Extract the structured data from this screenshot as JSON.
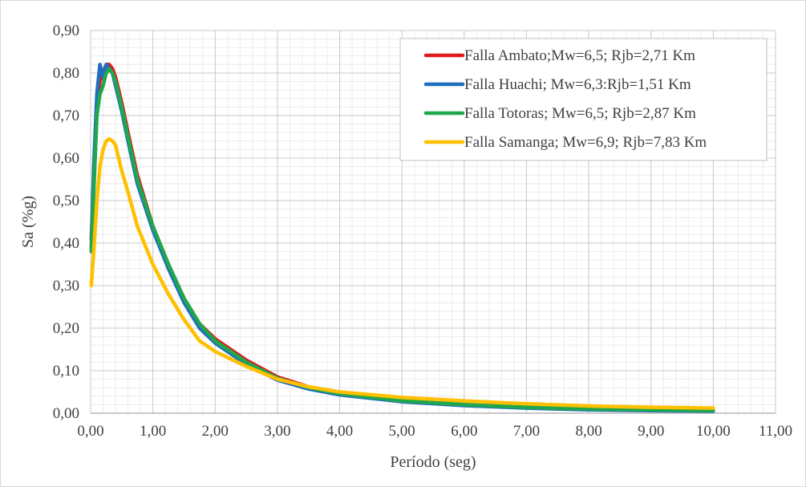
{
  "chart_data": {
    "type": "line",
    "title": "",
    "xlabel": "Período (seg)",
    "ylabel": "Sa (%g)",
    "xlim": [
      0,
      11
    ],
    "ylim": [
      0,
      0.9
    ],
    "x_major_step": 1,
    "x_minor_step": 0.2,
    "y_major_step": 0.1,
    "y_minor_step": 0.02,
    "x_tick_labels": [
      "0,00",
      "1,00",
      "2,00",
      "3,00",
      "4,00",
      "5,00",
      "6,00",
      "7,00",
      "8,00",
      "9,00",
      "10,00",
      "11,00"
    ],
    "y_tick_labels": [
      "0,00",
      "0,10",
      "0,20",
      "0,30",
      "0,40",
      "0,50",
      "0,60",
      "0,70",
      "0,80",
      "0,90"
    ],
    "grid": true,
    "legend_position": "top-right",
    "series": [
      {
        "name": "Falla Ambato;Mw=6,5; Rjb=2,71 Km",
        "color": "#e31a1c",
        "points": [
          [
            0.01,
            0.41
          ],
          [
            0.05,
            0.55
          ],
          [
            0.1,
            0.73
          ],
          [
            0.15,
            0.78
          ],
          [
            0.2,
            0.8
          ],
          [
            0.25,
            0.82
          ],
          [
            0.3,
            0.82
          ],
          [
            0.35,
            0.81
          ],
          [
            0.4,
            0.79
          ],
          [
            0.5,
            0.73
          ],
          [
            0.6,
            0.66
          ],
          [
            0.75,
            0.56
          ],
          [
            1.0,
            0.44
          ],
          [
            1.25,
            0.35
          ],
          [
            1.5,
            0.27
          ],
          [
            1.75,
            0.21
          ],
          [
            2.0,
            0.175
          ],
          [
            2.5,
            0.125
          ],
          [
            3.0,
            0.085
          ],
          [
            3.5,
            0.062
          ],
          [
            4.0,
            0.047
          ],
          [
            5.0,
            0.03
          ],
          [
            6.0,
            0.02
          ],
          [
            7.0,
            0.014
          ],
          [
            8.0,
            0.01
          ],
          [
            9.0,
            0.008
          ],
          [
            10.0,
            0.006
          ]
        ]
      },
      {
        "name": "Falla Huachi; Mw=6,3:Rjb=1,51 Km",
        "color": "#1f6fbf",
        "points": [
          [
            0.01,
            0.39
          ],
          [
            0.05,
            0.58
          ],
          [
            0.1,
            0.75
          ],
          [
            0.15,
            0.82
          ],
          [
            0.2,
            0.79
          ],
          [
            0.25,
            0.82
          ],
          [
            0.3,
            0.81
          ],
          [
            0.35,
            0.8
          ],
          [
            0.4,
            0.77
          ],
          [
            0.5,
            0.71
          ],
          [
            0.6,
            0.64
          ],
          [
            0.75,
            0.54
          ],
          [
            1.0,
            0.43
          ],
          [
            1.25,
            0.34
          ],
          [
            1.5,
            0.26
          ],
          [
            1.75,
            0.2
          ],
          [
            2.0,
            0.165
          ],
          [
            2.5,
            0.115
          ],
          [
            3.0,
            0.078
          ],
          [
            3.5,
            0.057
          ],
          [
            4.0,
            0.043
          ],
          [
            5.0,
            0.027
          ],
          [
            6.0,
            0.018
          ],
          [
            7.0,
            0.012
          ],
          [
            8.0,
            0.008
          ],
          [
            9.0,
            0.006
          ],
          [
            10.0,
            0.005
          ]
        ]
      },
      {
        "name": "Falla Totoras; Mw=6,5; Rjb=2,87 Km",
        "color": "#1fa84b",
        "points": [
          [
            0.01,
            0.38
          ],
          [
            0.05,
            0.52
          ],
          [
            0.1,
            0.7
          ],
          [
            0.15,
            0.75
          ],
          [
            0.2,
            0.77
          ],
          [
            0.25,
            0.8
          ],
          [
            0.3,
            0.81
          ],
          [
            0.35,
            0.8
          ],
          [
            0.4,
            0.78
          ],
          [
            0.5,
            0.72
          ],
          [
            0.6,
            0.65
          ],
          [
            0.75,
            0.55
          ],
          [
            1.0,
            0.44
          ],
          [
            1.25,
            0.35
          ],
          [
            1.5,
            0.27
          ],
          [
            1.75,
            0.21
          ],
          [
            2.0,
            0.17
          ],
          [
            2.5,
            0.12
          ],
          [
            3.0,
            0.082
          ],
          [
            3.5,
            0.06
          ],
          [
            4.0,
            0.046
          ],
          [
            5.0,
            0.029
          ],
          [
            6.0,
            0.02
          ],
          [
            7.0,
            0.014
          ],
          [
            8.0,
            0.01
          ],
          [
            9.0,
            0.008
          ],
          [
            10.0,
            0.006
          ]
        ]
      },
      {
        "name": "Falla Samanga; Mw=6,9; Rjb=7,83 Km",
        "color": "#ffc000",
        "points": [
          [
            0.01,
            0.3
          ],
          [
            0.05,
            0.38
          ],
          [
            0.1,
            0.5
          ],
          [
            0.15,
            0.58
          ],
          [
            0.2,
            0.62
          ],
          [
            0.25,
            0.64
          ],
          [
            0.3,
            0.645
          ],
          [
            0.35,
            0.64
          ],
          [
            0.4,
            0.63
          ],
          [
            0.5,
            0.57
          ],
          [
            0.6,
            0.52
          ],
          [
            0.75,
            0.44
          ],
          [
            1.0,
            0.35
          ],
          [
            1.25,
            0.28
          ],
          [
            1.5,
            0.22
          ],
          [
            1.75,
            0.17
          ],
          [
            2.0,
            0.145
          ],
          [
            2.5,
            0.11
          ],
          [
            3.0,
            0.08
          ],
          [
            3.5,
            0.062
          ],
          [
            4.0,
            0.05
          ],
          [
            5.0,
            0.037
          ],
          [
            6.0,
            0.029
          ],
          [
            7.0,
            0.022
          ],
          [
            8.0,
            0.017
          ],
          [
            9.0,
            0.014
          ],
          [
            10.0,
            0.012
          ]
        ]
      }
    ]
  }
}
